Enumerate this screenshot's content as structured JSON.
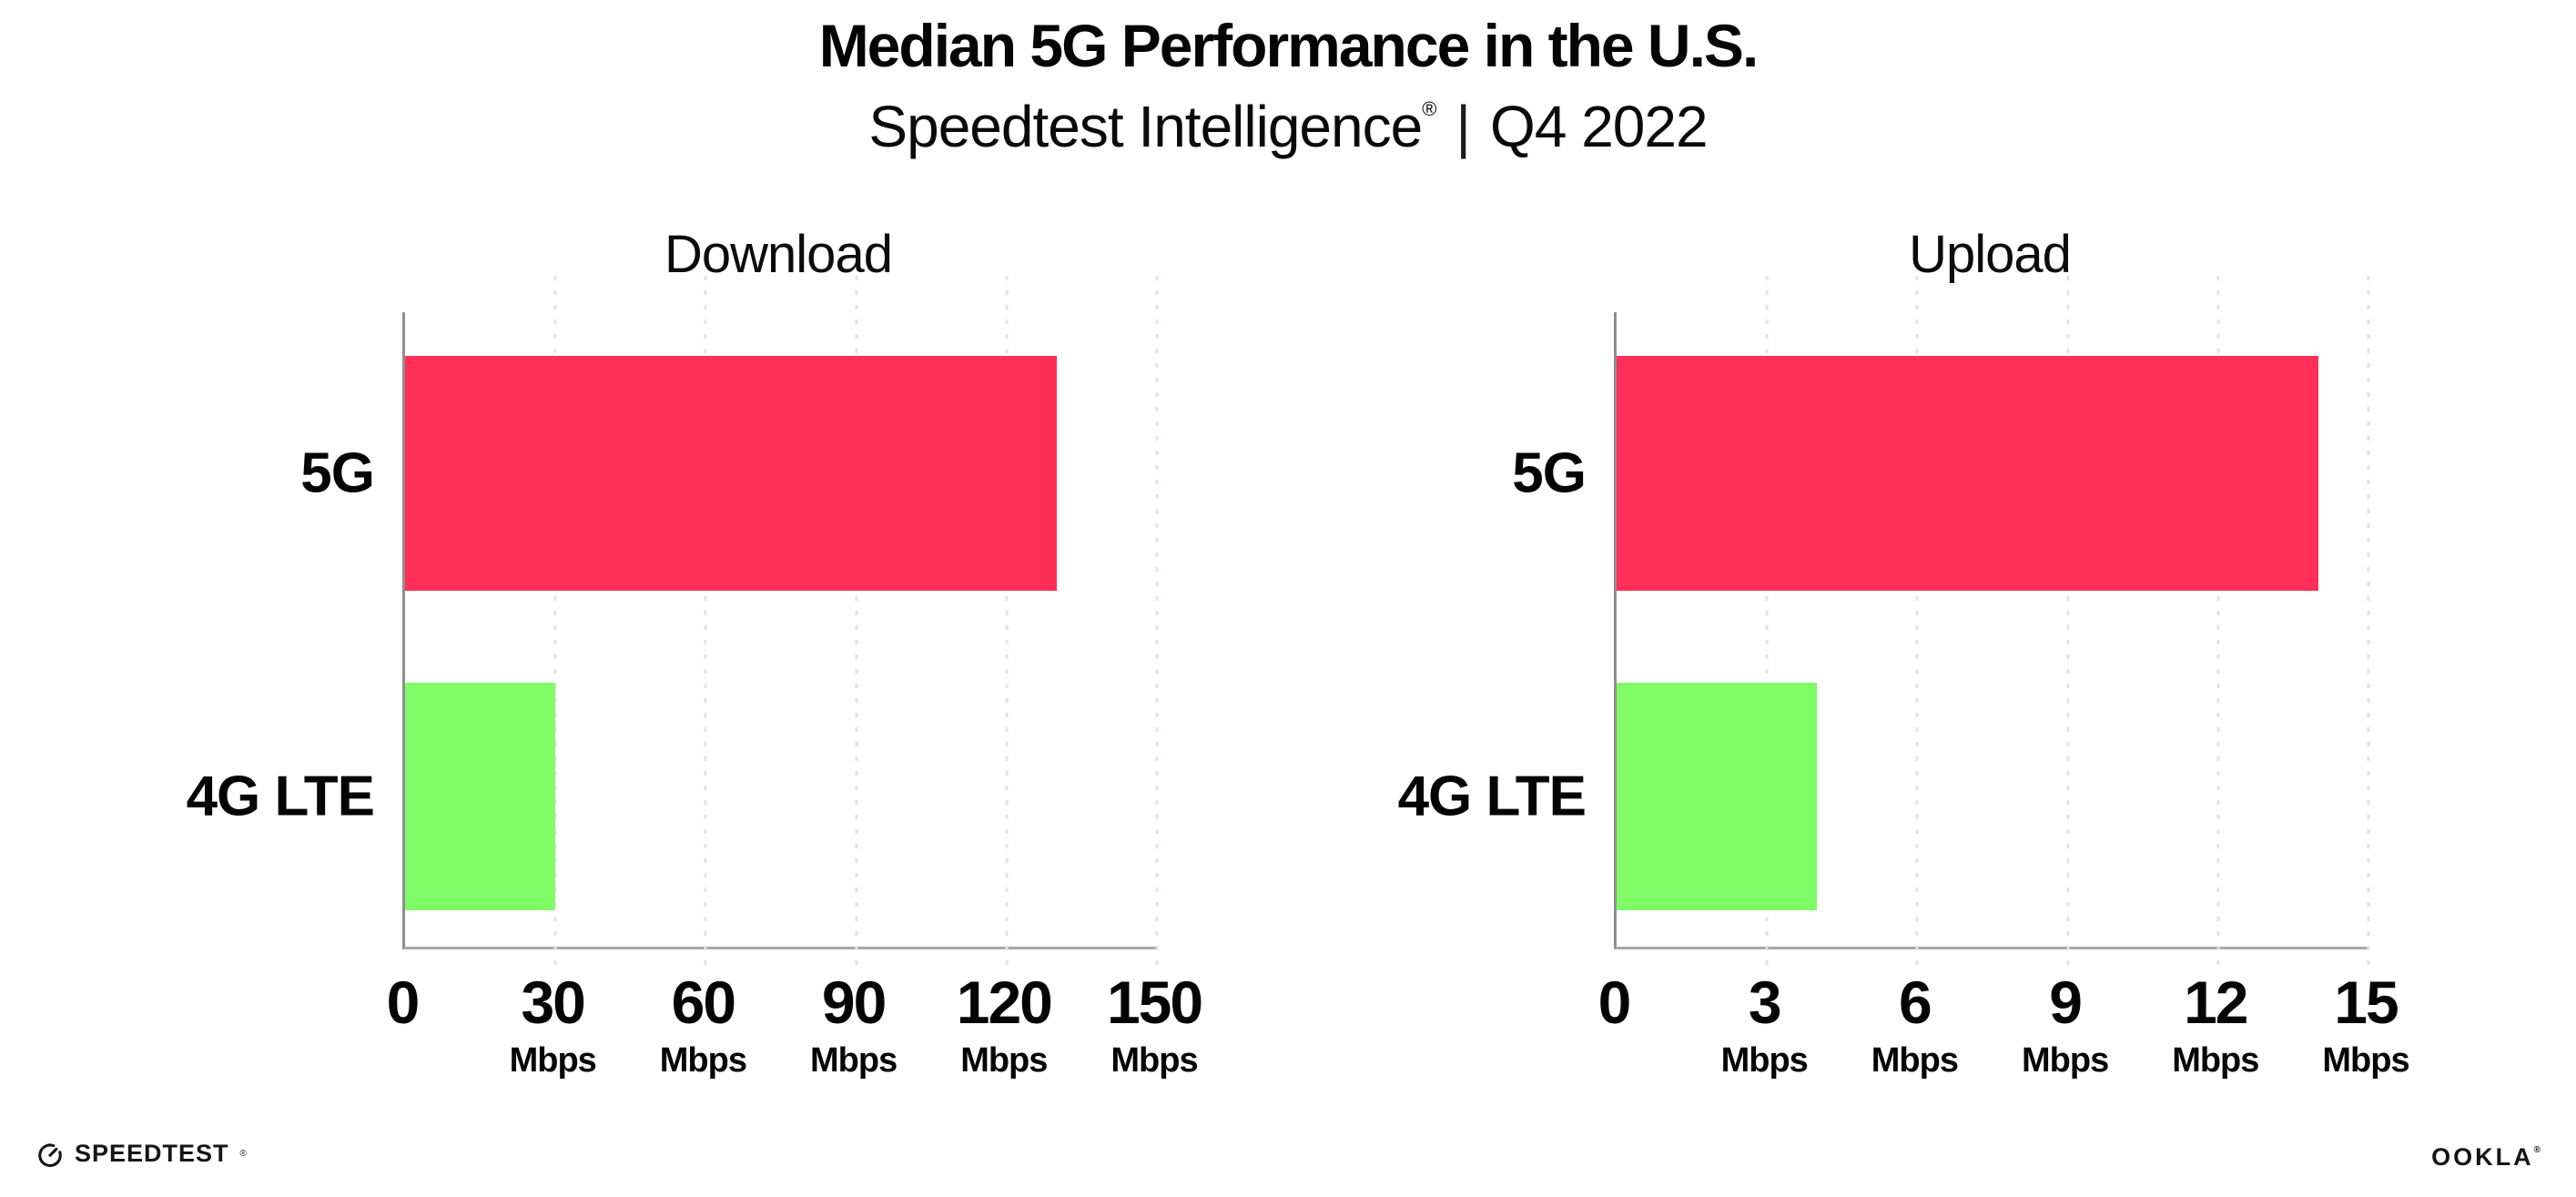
{
  "header": {
    "title": "Median 5G Performance in the U.S.",
    "subtitle_brand": "Speedtest Intelligence",
    "subtitle_reg": "®",
    "subtitle_separator": "|",
    "subtitle_period": "Q4 2022"
  },
  "chart_data": [
    {
      "type": "bar",
      "orientation": "horizontal",
      "title": "Download",
      "categories": [
        "5G",
        "4G LTE"
      ],
      "values": [
        130,
        30
      ],
      "unit": "Mbps",
      "xlim": [
        0,
        150
      ],
      "xticks": [
        0,
        30,
        60,
        90,
        120,
        150
      ],
      "bar_colors": [
        "#FF2F58",
        "#7FFC66"
      ],
      "grid": "dotted-vertical",
      "unit_label_on_zero_tick": false,
      "legend": "none"
    },
    {
      "type": "bar",
      "orientation": "horizontal",
      "title": "Upload",
      "categories": [
        "5G",
        "4G LTE"
      ],
      "values": [
        14,
        4
      ],
      "unit": "Mbps",
      "xlim": [
        0,
        15
      ],
      "xticks": [
        0,
        3,
        6,
        9,
        12,
        15
      ],
      "bar_colors": [
        "#FF2F58",
        "#7FFC66"
      ],
      "grid": "dotted-vertical",
      "unit_label_on_zero_tick": false,
      "legend": "none"
    }
  ],
  "footer": {
    "speedtest_label": "SPEEDTEST",
    "speedtest_reg": "®",
    "ookla_label": "OOKLA",
    "ookla_reg": "®"
  },
  "colors": {
    "bar_5g": "#FF2F58",
    "bar_4g_lte": "#7FFC66",
    "gridline": "#E2E2EC",
    "axis": "#8F8F8F",
    "text": "#050505"
  }
}
